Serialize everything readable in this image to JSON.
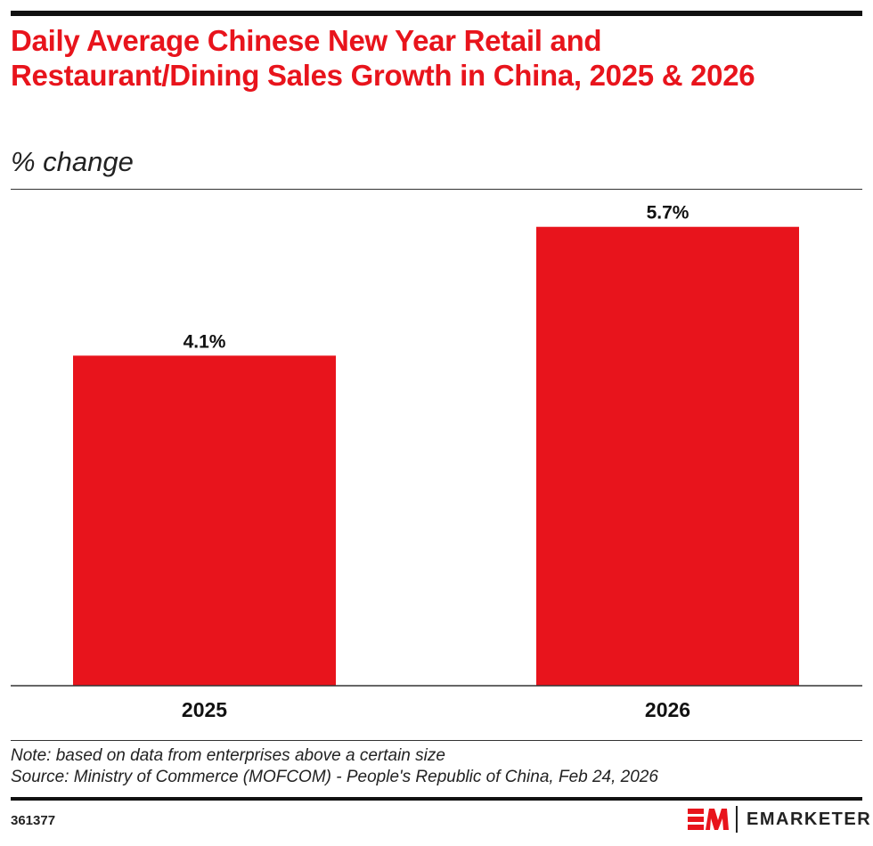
{
  "header": {
    "title": "Daily Average Chinese New Year Retail and Restaurant/Dining Sales Growth in China, 2025 & 2026",
    "subtitle": "% change"
  },
  "chart_data": {
    "type": "bar",
    "categories": [
      "2025",
      "2026"
    ],
    "values": [
      4.1,
      5.7
    ],
    "data_labels": [
      "4.1%",
      "5.7%"
    ],
    "bar_color": "#e8141c",
    "grid": false
  },
  "footer": {
    "note": "Note: based on data from enterprises above a certain size",
    "source": "Source: Ministry of Commerce (MOFCOM) - People's Republic of China, Feb 24, 2026",
    "chart_id": "361377",
    "brand": "EMARKETER",
    "brand_color": "#e8141c"
  }
}
